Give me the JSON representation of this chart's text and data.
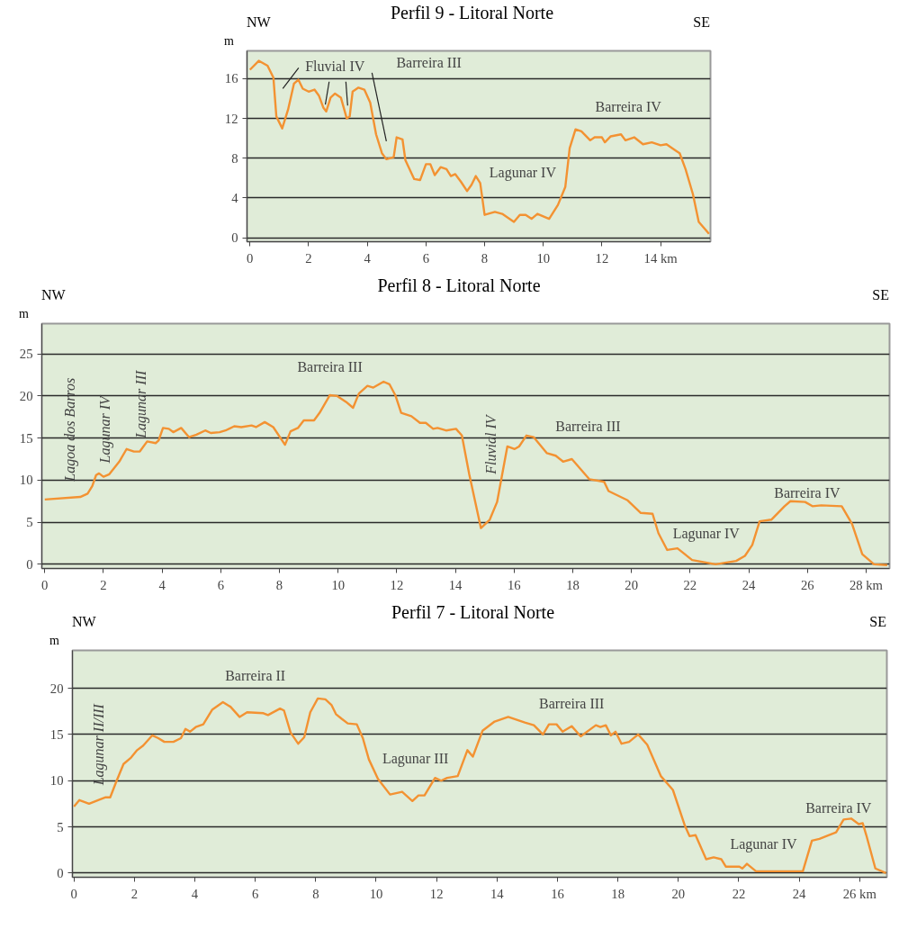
{
  "chart_data": [
    {
      "type": "line",
      "title": "Perfil 9 - Litoral Norte",
      "ylabel": "m",
      "xlim": [
        -0.1,
        15.7
      ],
      "ylim": [
        -0.4,
        18.8
      ],
      "xticks": [
        0,
        2,
        4,
        6,
        8,
        10,
        12,
        {
          "value": 14,
          "label": "14 km"
        }
      ],
      "yticks": [
        0,
        4,
        8,
        12,
        16
      ],
      "grid": "y",
      "line_style": "solid",
      "series": [
        {
          "color": "#f39232",
          "x": [
            0,
            0.3,
            0.6,
            0.8,
            0.9,
            1.1,
            1.3,
            1.5,
            1.65,
            1.8,
            2.0,
            2.2,
            2.35,
            2.5,
            2.6,
            2.75,
            2.9,
            3.1,
            3.3,
            3.4,
            3.5,
            3.7,
            3.9,
            4.1,
            4.3,
            4.5,
            4.65,
            4.9,
            5.0,
            5.2,
            5.3,
            5.6,
            5.8,
            6.0,
            6.15,
            6.3,
            6.5,
            6.7,
            6.85,
            7.0,
            7.2,
            7.4,
            7.55,
            7.7,
            7.85,
            8.0,
            8.35,
            8.6,
            9.0,
            9.2,
            9.4,
            9.6,
            9.8,
            10.2,
            10.5,
            10.75,
            10.9,
            11.1,
            11.3,
            11.6,
            11.75,
            12.0,
            12.1,
            12.3,
            12.65,
            12.8,
            13.1,
            13.4,
            13.7,
            14.0,
            14.2,
            14.5,
            14.65,
            14.85,
            15.1,
            15.3,
            15.65
          ],
          "values": [
            16.9,
            17.8,
            17.3,
            16.1,
            12.2,
            11.0,
            12.9,
            15.5,
            15.9,
            15.0,
            14.7,
            14.9,
            14.3,
            13.1,
            12.7,
            14.1,
            14.5,
            14.1,
            12.0,
            12.2,
            14.7,
            15.1,
            14.9,
            13.6,
            10.4,
            8.5,
            7.9,
            8.1,
            10.1,
            9.9,
            7.8,
            5.9,
            5.8,
            7.4,
            7.4,
            6.3,
            7.1,
            6.9,
            6.2,
            6.4,
            5.6,
            4.7,
            5.3,
            6.2,
            5.5,
            2.3,
            2.6,
            2.4,
            1.6,
            2.3,
            2.3,
            1.9,
            2.4,
            1.9,
            3.3,
            5.1,
            9.0,
            10.9,
            10.7,
            9.8,
            10.1,
            10.1,
            9.6,
            10.2,
            10.4,
            9.8,
            10.1,
            9.4,
            9.6,
            9.3,
            9.4,
            8.8,
            8.5,
            6.9,
            4.4,
            1.6,
            0.4
          ]
        }
      ],
      "annotations": [
        "NW",
        "SE",
        {
          "text": "Fluvial IV",
          "x": 2.57,
          "y": 13.4
        },
        "Barreira III",
        "Barreira IV",
        "Lagunar IV"
      ]
    },
    {
      "type": "line",
      "title": "Perfil 8 - Litoral Norte",
      "ylabel": "m",
      "xlim": [
        -0.1,
        28.8
      ],
      "ylim": [
        -0.5,
        28.6
      ],
      "xticks": [
        0,
        2,
        4,
        6,
        8,
        10,
        12,
        14,
        16,
        18,
        20,
        22,
        24,
        26,
        {
          "value": 28,
          "label": "28 km"
        }
      ],
      "yticks": [
        0,
        5,
        10,
        15,
        20,
        25
      ],
      "grid": "y",
      "line_style": "solid",
      "series": [
        {
          "color": "#f39232",
          "x": [
            0,
            1.21,
            1.46,
            1.62,
            1.75,
            1.85,
            2.0,
            2.2,
            2.54,
            2.79,
            3.04,
            3.24,
            3.49,
            3.78,
            3.88,
            4.03,
            4.23,
            4.38,
            4.65,
            4.92,
            5.17,
            5.47,
            5.66,
            5.96,
            6.16,
            6.46,
            6.7,
            7.05,
            7.2,
            7.5,
            7.79,
            8.19,
            8.38,
            8.63,
            8.83,
            9.18,
            9.37,
            9.72,
            9.97,
            10.27,
            10.51,
            10.71,
            11.0,
            11.2,
            11.55,
            11.75,
            11.95,
            12.15,
            12.5,
            12.79,
            12.99,
            13.24,
            13.39,
            13.68,
            14.02,
            14.22,
            14.47,
            14.87,
            15.17,
            15.42,
            15.77,
            16.02,
            16.17,
            16.42,
            16.67,
            17.12,
            17.42,
            17.67,
            17.97,
            18.57,
            19.07,
            19.22,
            19.87,
            20.32,
            20.72,
            20.92,
            21.22,
            21.57,
            22.07,
            22.87,
            23.57,
            23.87,
            24.12,
            24.37,
            24.77,
            25.22,
            25.42,
            25.92,
            26.17,
            26.47,
            27.17,
            27.52,
            27.87,
            28.27,
            28.72
          ],
          "values": [
            7.7,
            8.0,
            8.4,
            9.3,
            10.6,
            10.8,
            10.4,
            10.7,
            12.2,
            13.7,
            13.4,
            13.4,
            14.6,
            14.4,
            14.7,
            16.2,
            16.1,
            15.7,
            16.2,
            15.1,
            15.4,
            15.9,
            15.6,
            15.7,
            15.9,
            16.4,
            16.3,
            16.5,
            16.3,
            16.9,
            16.3,
            14.2,
            15.8,
            16.2,
            17.1,
            17.1,
            18.0,
            20.1,
            20.0,
            19.3,
            18.6,
            20.3,
            21.2,
            21.0,
            21.7,
            21.4,
            20.1,
            18.0,
            17.6,
            16.8,
            16.8,
            16.1,
            16.2,
            15.9,
            16.1,
            15.3,
            10.7,
            4.3,
            5.3,
            7.4,
            14.0,
            13.7,
            14.0,
            15.3,
            15.1,
            13.2,
            12.9,
            12.2,
            12.5,
            10.1,
            9.8,
            8.7,
            7.6,
            6.1,
            6.0,
            3.7,
            1.7,
            1.9,
            0.5,
            0.0,
            0.4,
            1.0,
            2.3,
            5.1,
            5.3,
            6.9,
            7.5,
            7.4,
            6.9,
            7.0,
            6.9,
            4.8,
            1.2,
            0.0,
            -0.1
          ]
        }
      ],
      "annotations": [
        "NW",
        "SE",
        "Lagoa dos Barros",
        "Lagunar IV",
        "Lagunar III",
        "Fluvial IV",
        "Barreira III",
        "Barreira III",
        "Lagunar IV",
        "Barreira IV"
      ]
    },
    {
      "type": "line",
      "title": "Perfil 7 - Litoral Norte",
      "ylabel": "m",
      "xlim": [
        -0.05,
        26.9
      ],
      "ylim": [
        -0.45,
        24.1
      ],
      "xticks": [
        0,
        2,
        4,
        6,
        8,
        10,
        12,
        14,
        16,
        18,
        20,
        22,
        24,
        {
          "value": 26,
          "label": "26 km"
        }
      ],
      "yticks": [
        0,
        5,
        10,
        15,
        20
      ],
      "grid": "y",
      "line_style": "solid",
      "series": [
        {
          "color": "#f39232",
          "x": [
            0,
            0.18,
            0.5,
            0.8,
            1.05,
            1.2,
            1.39,
            1.64,
            1.89,
            2.09,
            2.29,
            2.59,
            2.79,
            2.99,
            3.29,
            3.54,
            3.69,
            3.84,
            4.03,
            4.28,
            4.58,
            4.93,
            5.18,
            5.48,
            5.73,
            6.27,
            6.42,
            6.82,
            6.95,
            7.17,
            7.42,
            7.62,
            7.82,
            8.07,
            8.32,
            8.52,
            8.67,
            8.86,
            9.06,
            9.36,
            9.56,
            9.76,
            10.06,
            10.46,
            10.86,
            11.2,
            11.4,
            11.6,
            11.95,
            12.15,
            12.35,
            12.7,
            13.02,
            13.2,
            13.52,
            13.92,
            14.37,
            14.92,
            15.22,
            15.52,
            15.72,
            15.97,
            16.17,
            16.47,
            16.77,
            17.27,
            17.42,
            17.6,
            17.77,
            17.92,
            18.12,
            18.37,
            18.67,
            18.97,
            19.42,
            19.82,
            20.22,
            20.37,
            20.57,
            20.92,
            21.17,
            21.42,
            21.57,
            22.02,
            22.12,
            22.27,
            22.57,
            24.12,
            24.42,
            24.67,
            24.97,
            25.22,
            25.47,
            25.72,
            25.97,
            26.1,
            26.22,
            26.52,
            26.87
          ],
          "values": [
            7.2,
            7.9,
            7.5,
            7.9,
            8.2,
            8.2,
            9.8,
            11.8,
            12.5,
            13.3,
            13.8,
            14.9,
            14.6,
            14.2,
            14.2,
            14.6,
            15.6,
            15.3,
            15.8,
            16.1,
            17.7,
            18.5,
            18.0,
            16.9,
            17.4,
            17.3,
            17.1,
            17.8,
            17.6,
            15.2,
            14.0,
            14.7,
            17.4,
            18.9,
            18.8,
            18.2,
            17.2,
            16.7,
            16.2,
            16.1,
            14.6,
            12.3,
            10.2,
            8.5,
            8.8,
            7.8,
            8.4,
            8.4,
            10.3,
            10.0,
            10.3,
            10.5,
            13.3,
            12.6,
            15.4,
            16.4,
            16.9,
            16.3,
            16.0,
            15.0,
            16.1,
            16.1,
            15.3,
            15.9,
            14.8,
            16.0,
            15.8,
            16.0,
            14.9,
            15.3,
            14.0,
            14.2,
            15.0,
            13.9,
            10.5,
            9.0,
            5.1,
            4.0,
            4.1,
            1.5,
            1.7,
            1.5,
            0.7,
            0.7,
            0.5,
            1.0,
            0.2,
            0.2,
            3.5,
            3.7,
            4.1,
            4.4,
            5.8,
            5.9,
            5.3,
            5.4,
            4.1,
            0.5,
            0.0
          ]
        }
      ],
      "annotations": [
        "NW",
        "SE",
        "Lagunar II/III",
        "Barreira II",
        "Lagunar III",
        "Barreira III",
        "Lagunar IV",
        "Barreira IV"
      ]
    }
  ]
}
